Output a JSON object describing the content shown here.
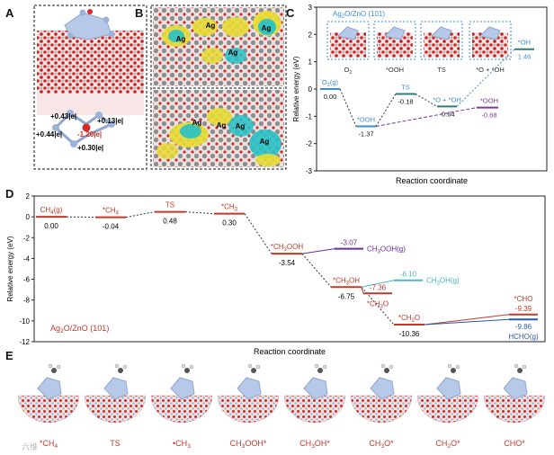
{
  "panel_letters": {
    "a": "A",
    "b": "B",
    "c": "C",
    "d": "D",
    "e": "E"
  },
  "panel_a": {
    "charges": [
      "+0.43|e|",
      "+0.13|e|",
      "+0.44|e|",
      "-1.20|e|",
      "+0.30|e|"
    ]
  },
  "panel_b": {
    "ag_labels": [
      "Ag",
      "Ag",
      "Ag",
      "Ag",
      "Ag",
      "Ag",
      "Ag",
      "Ag"
    ]
  },
  "colors": {
    "oxygen_red": "#d62a24",
    "zinc_gray": "#8a8a8a",
    "silver_blue": "#9ab3dc",
    "surface_pink": "#f0c8c8",
    "iso_yellow": "#e8dc34",
    "iso_cyan": "#27c2c6",
    "o2_path": "#3d8fcc",
    "ooh_path": "#7d3aa0",
    "ch3ooh_series": "#6a2e9c",
    "ch3oh_series": "#4ab8c0",
    "hcho_series": "#2a58a8",
    "main_path": "#c0392b"
  },
  "chart_data": [
    {
      "id": "C",
      "type": "line",
      "description_kind": "energy-profile",
      "title": "Ag2O/ZnO (101)",
      "xlabel": "Reaction coordinate",
      "ylabel": "Relative energy (eV)",
      "ylim": [
        -3,
        3
      ],
      "yticks": [
        -3,
        -2,
        -1,
        0,
        1,
        2,
        3
      ],
      "main_path": [
        {
          "label": "O2(g)",
          "value": 0.0,
          "value_label": "0.00"
        },
        {
          "label": "*OOH",
          "value": -1.37,
          "value_label": "-1.37"
        },
        {
          "label": "TS",
          "value": -0.18,
          "value_label": "-0.18"
        },
        {
          "label": "*O + *OH",
          "value": -0.64,
          "value_label": "-0.64"
        },
        {
          "label": "*OH",
          "value": 1.46,
          "value_label": "1.46"
        }
      ],
      "branch": {
        "label": "*OOH",
        "value": -0.68,
        "value_label": "-0.68"
      },
      "inset_labels": [
        "O2",
        "*OOH",
        "TS",
        "*O + *OH"
      ]
    },
    {
      "id": "D",
      "type": "line",
      "description_kind": "energy-profile",
      "title": "Ag2O/ZnO (101)",
      "xlabel": "Reaction coordinate",
      "ylabel": "Relative energy (eV)",
      "ylim": [
        -12,
        2
      ],
      "yticks": [
        -12,
        -10,
        -8,
        -6,
        -4,
        -2,
        0,
        2
      ],
      "main_path": [
        {
          "label": "CH4(g)",
          "value": 0.0,
          "value_label": "0.00"
        },
        {
          "label": "*CH4",
          "value": -0.04,
          "value_label": "-0.04"
        },
        {
          "label": "TS",
          "value": 0.48,
          "value_label": "0.48"
        },
        {
          "label": "*CH3",
          "value": 0.3,
          "value_label": "0.30"
        },
        {
          "label": "*CH3OOH",
          "value": -3.54,
          "value_label": "-3.54"
        },
        {
          "label": "*CH3OH",
          "value": -6.75,
          "value_label": "-6.75"
        },
        {
          "label": "*CH2O",
          "value": -10.36,
          "value_label": "-10.36"
        }
      ],
      "branches": [
        {
          "label": "CH3OOH(g)",
          "value": -3.07,
          "value_label": "-3.07"
        },
        {
          "label": "CH3OH(g)",
          "value": -6.1,
          "value_label": "-6.10"
        },
        {
          "label": "*CH3O",
          "value": -7.36,
          "value_label": "-7.36"
        },
        {
          "label": "*CHO",
          "value": -9.39,
          "value_label": "-9.39"
        },
        {
          "label": "HCHO(g)",
          "value": -9.86,
          "value_label": "-9.86"
        }
      ]
    }
  ],
  "panel_e": {
    "labels": [
      "*CH4",
      "TS",
      "•CH3",
      "CH3OOH*",
      "CH3OH*",
      "CH3O*",
      "CH2O*",
      "CHO*"
    ]
  },
  "watermark": "六维"
}
